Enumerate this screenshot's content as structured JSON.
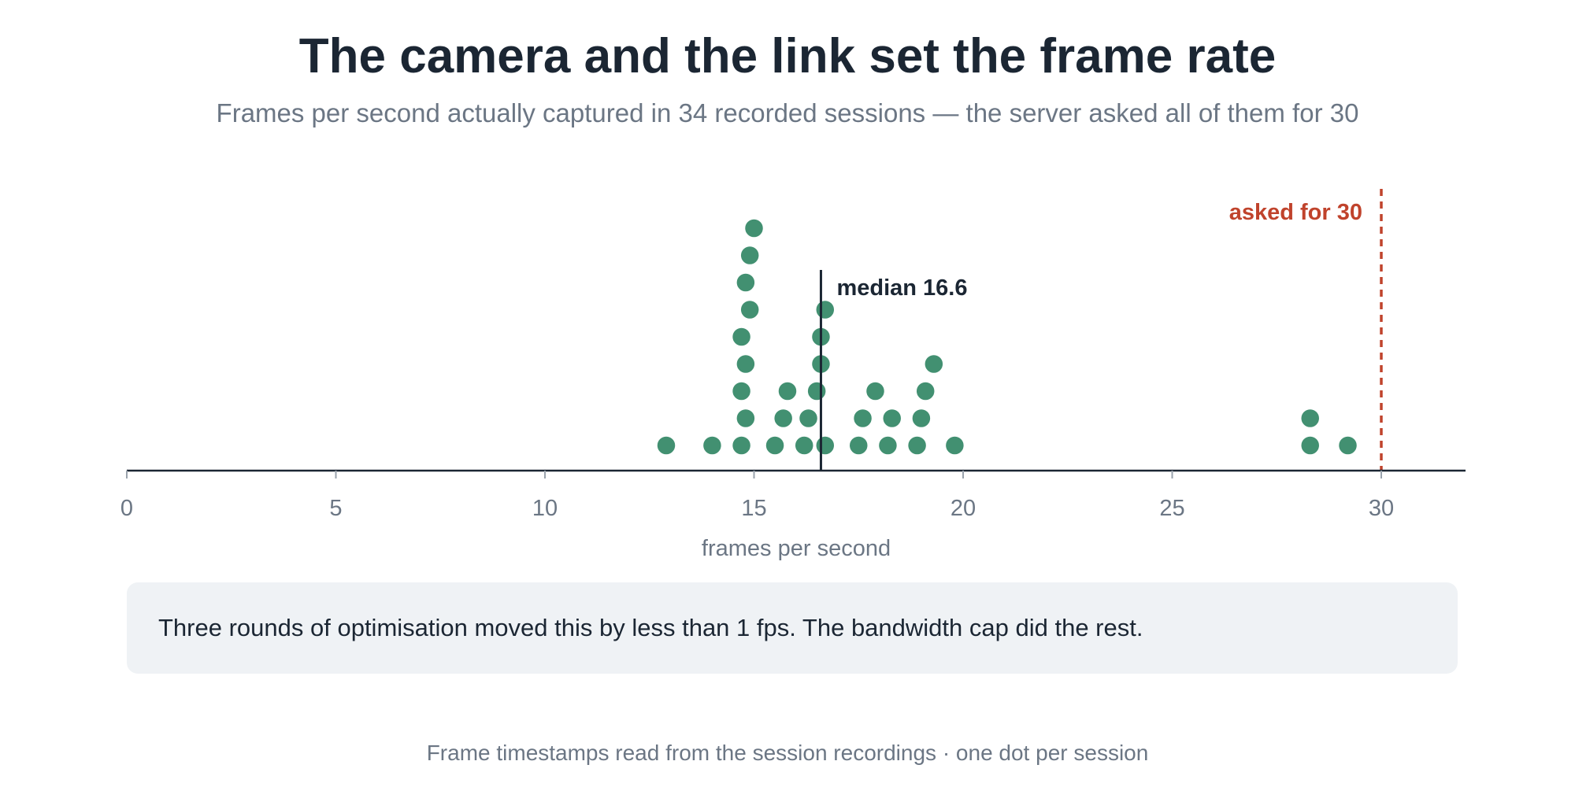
{
  "header": {
    "title": "The camera and the link set the frame rate",
    "subtitle": "Frames per second actually captured in 34 recorded sessions — the server asked all of them for 30"
  },
  "chart_data": {
    "type": "scatter",
    "subtype": "dot-plot",
    "title": "The camera and the link set the frame rate",
    "subtitle": "Frames per second actually captured in 34 recorded sessions — the server asked all of them for 30",
    "xlabel": "frames per second",
    "ylabel": "",
    "xlim": [
      0,
      32
    ],
    "xticks": [
      0,
      5,
      10,
      15,
      20,
      25,
      30
    ],
    "grid": false,
    "legend": "none",
    "point_color": "#2e8462",
    "values": [
      12.9,
      14.0,
      14.7,
      14.8,
      14.7,
      14.8,
      14.7,
      14.9,
      14.8,
      14.9,
      15.0,
      15.5,
      15.7,
      15.8,
      16.2,
      16.3,
      16.5,
      16.6,
      16.6,
      16.7,
      16.7,
      17.5,
      17.6,
      17.9,
      18.2,
      18.3,
      18.9,
      19.0,
      19.1,
      19.3,
      19.8,
      28.3,
      28.3,
      29.2
    ],
    "annotations": [
      {
        "type": "line",
        "x": 16.6,
        "label": "median 16.6",
        "color": "#1b2633",
        "style": "solid"
      },
      {
        "type": "line",
        "x": 30,
        "label": "asked for 30",
        "color": "#c0432c",
        "style": "dashed"
      }
    ]
  },
  "note": "Three rounds of optimisation moved this by less than 1 fps. The bandwidth cap did the rest.",
  "footer": "Frame timestamps read from the session recordings · one dot per session"
}
